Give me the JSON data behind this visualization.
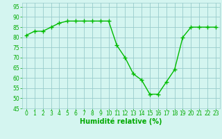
{
  "x": [
    0,
    1,
    2,
    3,
    4,
    5,
    6,
    7,
    8,
    9,
    10,
    11,
    12,
    13,
    14,
    15,
    16,
    17,
    18,
    19,
    20,
    21,
    22,
    23
  ],
  "y": [
    81,
    83,
    83,
    85,
    87,
    88,
    88,
    88,
    88,
    88,
    88,
    76,
    70,
    62,
    59,
    52,
    52,
    58,
    64,
    80,
    85,
    85,
    85,
    85
  ],
  "line_color": "#00bb00",
  "marker": "+",
  "marker_size": 4,
  "marker_lw": 1.0,
  "line_width": 1.0,
  "bg_color": "#d4f5f0",
  "grid_color": "#99cccc",
  "xlabel": "Humidité relative (%)",
  "xlabel_color": "#00aa00",
  "xlabel_fontsize": 7,
  "tick_color": "#00aa00",
  "tick_fontsize": 5.5,
  "ylim": [
    45,
    97
  ],
  "xlim": [
    -0.5,
    23.5
  ],
  "yticks": [
    45,
    50,
    55,
    60,
    65,
    70,
    75,
    80,
    85,
    90,
    95
  ],
  "xticks": [
    0,
    1,
    2,
    3,
    4,
    5,
    6,
    7,
    8,
    9,
    10,
    11,
    12,
    13,
    14,
    15,
    16,
    17,
    18,
    19,
    20,
    21,
    22,
    23
  ]
}
